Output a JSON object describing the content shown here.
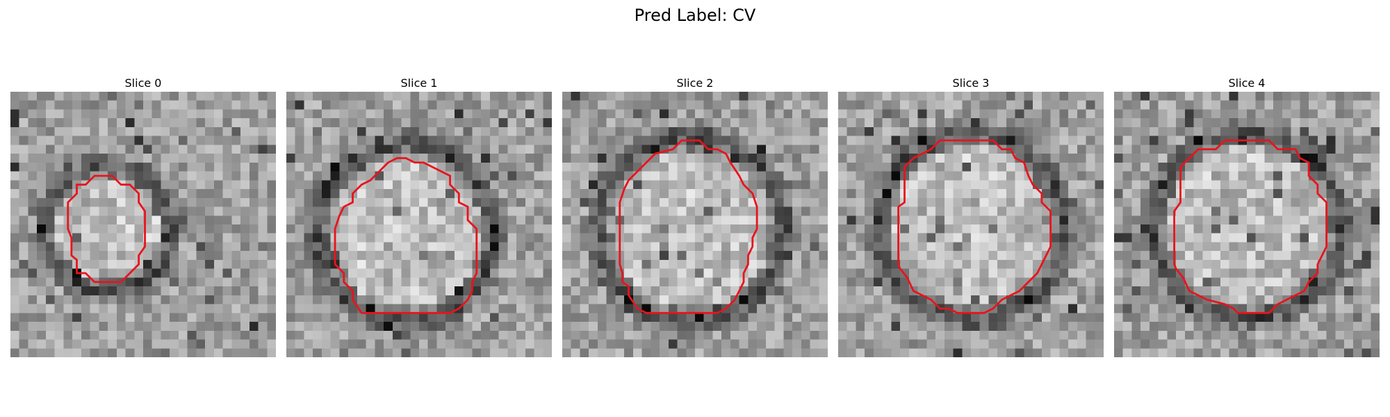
{
  "figure": {
    "title": "Pred Label: CV"
  },
  "contour_color": "#e8141c",
  "panels": [
    {
      "title": "Slice 0",
      "seed": 11,
      "contour": [
        [
          10.5,
          9.5
        ],
        [
          11.5,
          9.5
        ],
        [
          12.5,
          10.5
        ],
        [
          13.5,
          10.5
        ],
        [
          14.5,
          11.5
        ],
        [
          14.5,
          12.5
        ],
        [
          15.2,
          13.5
        ],
        [
          15.2,
          17.5
        ],
        [
          14.5,
          18.5
        ],
        [
          14.5,
          19.5
        ],
        [
          13.5,
          20.5
        ],
        [
          12.5,
          21.5
        ],
        [
          9.5,
          21.5
        ],
        [
          8.5,
          20.5
        ],
        [
          7.5,
          20.5
        ],
        [
          7.5,
          19.0
        ],
        [
          6.9,
          18.5
        ],
        [
          6.9,
          16.5
        ],
        [
          6.5,
          15.5
        ],
        [
          6.5,
          13.5
        ],
        [
          6.5,
          12.5
        ],
        [
          7.5,
          11.5
        ],
        [
          7.5,
          10.5
        ],
        [
          8.5,
          10.5
        ],
        [
          9.5,
          9.5
        ]
      ],
      "ring": {
        "cx": 11.0,
        "cy": 15.5,
        "r": 7.2
      }
    },
    {
      "title": "Slice 1",
      "seed": 23,
      "contour": [
        [
          12.5,
          7.5
        ],
        [
          13.5,
          7.5
        ],
        [
          14.5,
          8.0
        ],
        [
          15.5,
          8.0
        ],
        [
          16.5,
          8.5
        ],
        [
          17.5,
          9.0
        ],
        [
          18.5,
          9.5
        ],
        [
          18.5,
          10.5
        ],
        [
          19.5,
          11.5
        ],
        [
          19.5,
          12.5
        ],
        [
          20.5,
          13.0
        ],
        [
          20.5,
          14.5
        ],
        [
          21.5,
          15.5
        ],
        [
          21.5,
          19.5
        ],
        [
          21.5,
          20.5
        ],
        [
          21.0,
          21.5
        ],
        [
          21.0,
          22.5
        ],
        [
          20.5,
          23.5
        ],
        [
          19.5,
          24.5
        ],
        [
          18.5,
          25.0
        ],
        [
          8.5,
          25.0
        ],
        [
          7.5,
          23.5
        ],
        [
          7.5,
          22.5
        ],
        [
          6.5,
          21.5
        ],
        [
          6.5,
          20.5
        ],
        [
          5.5,
          19.5
        ],
        [
          5.5,
          15.5
        ],
        [
          6.0,
          14.0
        ],
        [
          6.5,
          13.0
        ],
        [
          7.5,
          12.5
        ],
        [
          7.5,
          11.5
        ],
        [
          8.5,
          10.5
        ],
        [
          9.5,
          10.0
        ],
        [
          10.5,
          9.0
        ],
        [
          11.5,
          8.0
        ]
      ],
      "ring": {
        "cx": 13.5,
        "cy": 16.0,
        "r": 10.0
      }
    },
    {
      "title": "Slice 2",
      "seed": 37,
      "contour": [
        [
          13.5,
          5.5
        ],
        [
          15.5,
          5.5
        ],
        [
          16.5,
          6.5
        ],
        [
          17.5,
          6.5
        ],
        [
          18.5,
          7.0
        ],
        [
          19.0,
          8.0
        ],
        [
          20.0,
          9.5
        ],
        [
          20.5,
          10.5
        ],
        [
          21.5,
          11.5
        ],
        [
          22.0,
          13.0
        ],
        [
          22.0,
          15.5
        ],
        [
          21.5,
          16.5
        ],
        [
          21.5,
          17.5
        ],
        [
          21.0,
          18.5
        ],
        [
          21.0,
          19.5
        ],
        [
          20.5,
          20.5
        ],
        [
          20.5,
          21.5
        ],
        [
          20.0,
          22.5
        ],
        [
          19.5,
          23.5
        ],
        [
          18.5,
          24.5
        ],
        [
          17.5,
          25.0
        ],
        [
          9.5,
          25.0
        ],
        [
          8.5,
          24.5
        ],
        [
          7.5,
          23.0
        ],
        [
          7.5,
          22.0
        ],
        [
          6.8,
          21.5
        ],
        [
          6.8,
          20.5
        ],
        [
          6.5,
          19.5
        ],
        [
          6.5,
          12.5
        ],
        [
          7.0,
          11.0
        ],
        [
          7.5,
          10.0
        ],
        [
          8.5,
          9.0
        ],
        [
          9.5,
          8.0
        ],
        [
          10.5,
          7.0
        ],
        [
          12.5,
          6.5
        ]
      ],
      "ring": {
        "cx": 14.5,
        "cy": 15.5,
        "r": 10.5
      }
    },
    {
      "title": "Slice 3",
      "seed": 51,
      "contour": [
        [
          11.5,
          5.5
        ],
        [
          12.5,
          5.5
        ],
        [
          17.5,
          5.5
        ],
        [
          18.5,
          6.5
        ],
        [
          19.5,
          6.5
        ],
        [
          20.0,
          7.5
        ],
        [
          21.0,
          8.0
        ],
        [
          21.5,
          9.5
        ],
        [
          22.0,
          10.5
        ],
        [
          23.0,
          11.5
        ],
        [
          23.0,
          12.5
        ],
        [
          24.0,
          13.5
        ],
        [
          24.0,
          17.5
        ],
        [
          23.5,
          18.5
        ],
        [
          23.0,
          19.5
        ],
        [
          22.5,
          20.5
        ],
        [
          21.5,
          21.5
        ],
        [
          20.5,
          22.5
        ],
        [
          19.5,
          23.0
        ],
        [
          18.5,
          23.5
        ],
        [
          17.5,
          24.5
        ],
        [
          16.5,
          25.0
        ],
        [
          13.5,
          25.0
        ],
        [
          12.5,
          24.5
        ],
        [
          11.5,
          24.5
        ],
        [
          10.5,
          23.5
        ],
        [
          9.5,
          23.0
        ],
        [
          8.5,
          22.5
        ],
        [
          7.8,
          21.0
        ],
        [
          7.0,
          20.0
        ],
        [
          6.8,
          19.5
        ],
        [
          6.8,
          13.0
        ],
        [
          7.5,
          12.5
        ],
        [
          7.5,
          8.5
        ],
        [
          8.5,
          7.5
        ],
        [
          9.5,
          7.0
        ],
        [
          10.5,
          6.5
        ]
      ],
      "ring": {
        "cx": 15.0,
        "cy": 15.2,
        "r": 10.5
      }
    },
    {
      "title": "Slice 4",
      "seed": 67,
      "contour": [
        [
          12.5,
          5.5
        ],
        [
          17.5,
          5.5
        ],
        [
          18.5,
          6.5
        ],
        [
          20.5,
          6.5
        ],
        [
          21.0,
          7.5
        ],
        [
          22.0,
          8.0
        ],
        [
          22.0,
          9.5
        ],
        [
          23.0,
          10.5
        ],
        [
          23.0,
          11.5
        ],
        [
          24.0,
          12.5
        ],
        [
          24.0,
          17.5
        ],
        [
          23.5,
          18.5
        ],
        [
          23.0,
          19.5
        ],
        [
          23.0,
          20.5
        ],
        [
          22.0,
          21.5
        ],
        [
          21.5,
          22.5
        ],
        [
          20.5,
          23.0
        ],
        [
          19.5,
          23.5
        ],
        [
          18.5,
          24.0
        ],
        [
          17.5,
          25.0
        ],
        [
          14.0,
          25.0
        ],
        [
          13.5,
          24.5
        ],
        [
          12.5,
          24.0
        ],
        [
          10.5,
          23.5
        ],
        [
          9.5,
          23.0
        ],
        [
          8.5,
          22.5
        ],
        [
          7.8,
          21.0
        ],
        [
          7.0,
          20.0
        ],
        [
          6.8,
          19.5
        ],
        [
          6.8,
          13.5
        ],
        [
          7.5,
          12.5
        ],
        [
          7.5,
          8.5
        ],
        [
          8.5,
          7.5
        ],
        [
          9.5,
          6.5
        ],
        [
          11.5,
          6.5
        ]
      ],
      "ring": {
        "cx": 15.0,
        "cy": 15.2,
        "r": 10.5
      }
    }
  ]
}
